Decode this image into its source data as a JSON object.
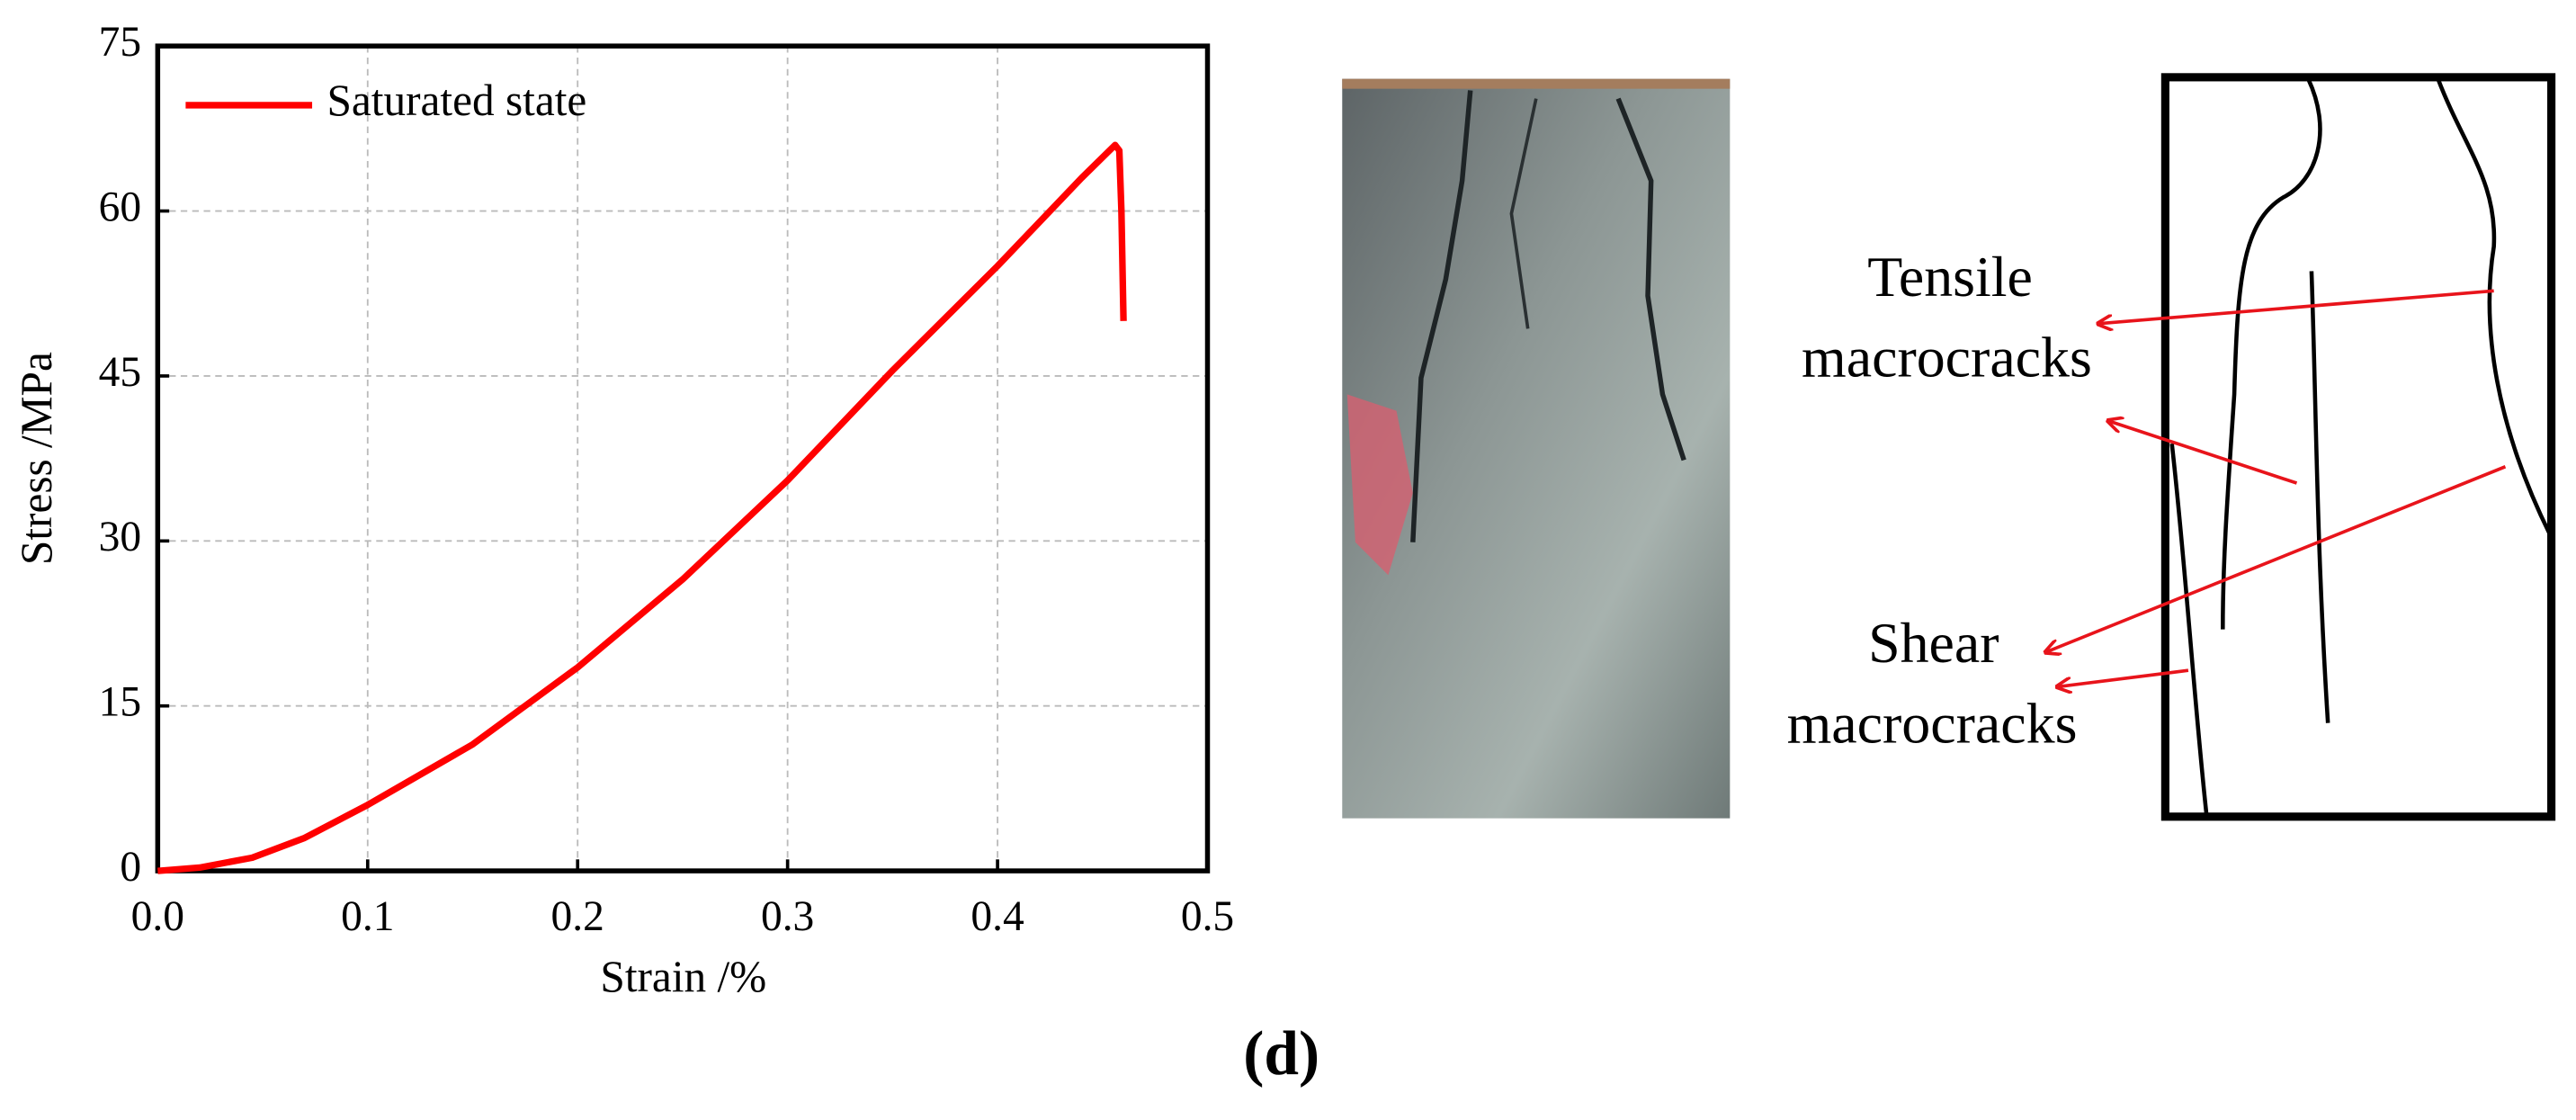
{
  "chart_data": {
    "type": "line",
    "x_label": "Strain /%",
    "y_label": "Stress /MPa",
    "x": [
      0,
      0.02,
      0.045,
      0.07,
      0.1,
      0.15,
      0.2,
      0.25,
      0.3,
      0.35,
      0.4,
      0.44,
      0.456,
      0.458,
      0.459,
      0.46
    ],
    "series": [
      {
        "name": "Saturated state",
        "color": "#ff0000",
        "values": [
          0,
          0.3,
          1.2,
          3,
          6,
          11.5,
          18.5,
          26.5,
          35.5,
          45.5,
          55,
          63,
          66,
          65.5,
          60,
          50
        ]
      }
    ],
    "xlim": [
      0,
      0.5
    ],
    "ylim": [
      0,
      75
    ],
    "xticks": [
      {
        "value": 0,
        "label": "0.0"
      },
      0.1,
      0.2,
      0.3,
      0.4,
      0.5
    ],
    "yticks": [
      0,
      15,
      30,
      45,
      60,
      75
    ],
    "grid": true,
    "legend": "upper left"
  },
  "annotations": {
    "tensile": [
      "Tensile",
      "macrocracks"
    ],
    "shear": [
      "Shear",
      "macrocracks"
    ]
  },
  "panel_label": "(d)"
}
